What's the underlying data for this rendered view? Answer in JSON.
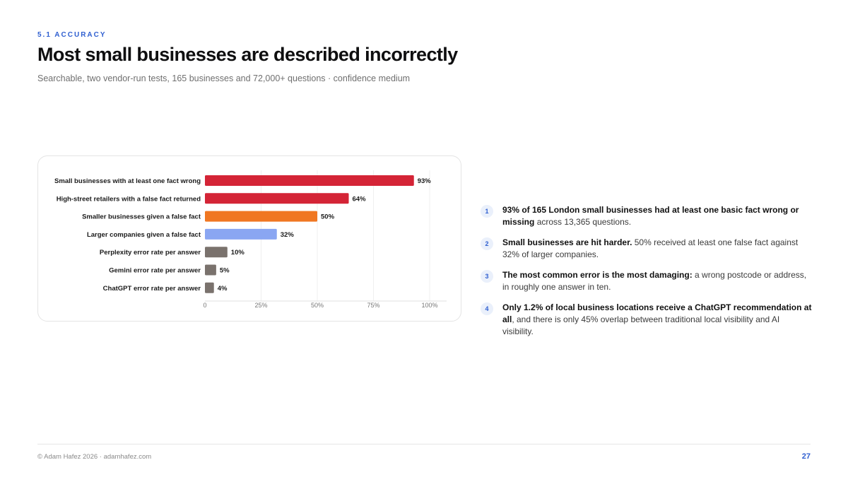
{
  "header": {
    "eyebrow": "5.1 ACCURACY",
    "title": "Most small businesses are described incorrectly",
    "subtitle": "Searchable, two vendor-run tests, 165 businesses and 72,000+ questions · confidence medium"
  },
  "chart_data": {
    "type": "bar",
    "orientation": "horizontal",
    "title": "",
    "xlabel": "",
    "ylabel": "",
    "xlim": [
      0,
      100
    ],
    "grid": true,
    "legend": "none",
    "ticks": [
      {
        "value": 0,
        "label": "0"
      },
      {
        "value": 25,
        "label": "25%"
      },
      {
        "value": 50,
        "label": "50%"
      },
      {
        "value": 75,
        "label": "75%"
      },
      {
        "value": 100,
        "label": "100%"
      }
    ],
    "bars": [
      {
        "category": "Small businesses with at least one fact wrong",
        "value": 93,
        "label": "93%",
        "color": "#d42436"
      },
      {
        "category": "High-street retailers with a false fact returned",
        "value": 64,
        "label": "64%",
        "color": "#d42436"
      },
      {
        "category": "Smaller businesses given a false fact",
        "value": 50,
        "label": "50%",
        "color": "#f07722"
      },
      {
        "category": "Larger companies given a false fact",
        "value": 32,
        "label": "32%",
        "color": "#8aa6f2"
      },
      {
        "category": "Perplexity error rate per answer",
        "value": 10,
        "label": "10%",
        "color": "#7a726d"
      },
      {
        "category": "Gemini error rate per answer",
        "value": 5,
        "label": "5%",
        "color": "#7a726d"
      },
      {
        "category": "ChatGPT error rate per answer",
        "value": 4,
        "label": "4%",
        "color": "#7a726d"
      }
    ]
  },
  "findings": [
    {
      "num": "1",
      "bold": "93% of 165 London small businesses had at least one basic fact wrong or missing",
      "rest": " across 13,365 questions."
    },
    {
      "num": "2",
      "bold": "Small businesses are hit harder.",
      "rest": " 50% received at least one false fact against 32% of larger companies."
    },
    {
      "num": "3",
      "bold": "The most common error is the most damaging:",
      "rest": " a wrong postcode or address, in roughly one answer in ten."
    },
    {
      "num": "4",
      "bold": "Only 1.2% of local business locations receive a ChatGPT recommendation at all",
      "rest": ", and there is only 45% overlap between traditional local visibility and AI visibility."
    }
  ],
  "footer": {
    "credit": "© Adam Hafez 2026 · adamhafez.com",
    "page": "27"
  }
}
